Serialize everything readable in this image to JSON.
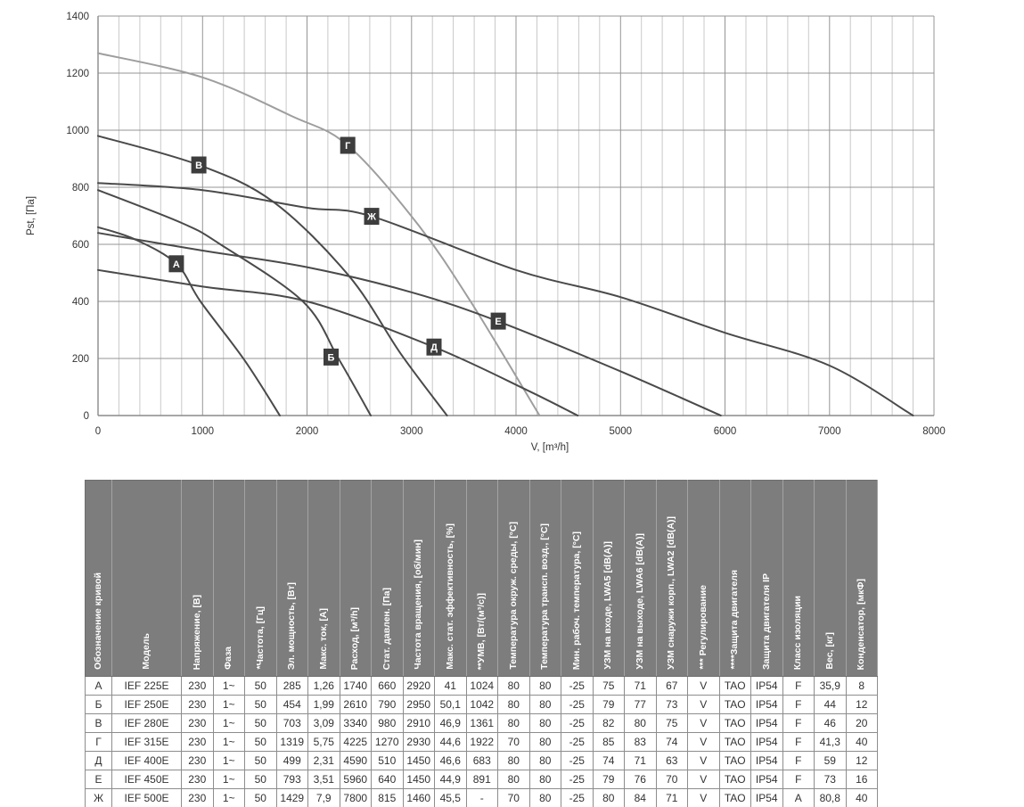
{
  "chart": {
    "colors": {
      "curve_dark": "#4a4a4a",
      "curve_light": "#9e9e9e",
      "grid_minor": "#c9c9c9",
      "grid_major": "#949494",
      "axis": "#8a8a8a",
      "tick_text": "#333333",
      "label_box": "#3d3d3d",
      "label_text": "#ffffff"
    }
  },
  "chart_data": {
    "type": "line",
    "title": "",
    "xlabel": "V, [m³/h]",
    "ylabel": "Pst, [Па]",
    "xlim": [
      0,
      8000
    ],
    "ylim": [
      0,
      1400
    ],
    "x_ticks": [
      0,
      1000,
      2000,
      3000,
      4000,
      5000,
      6000,
      7000,
      8000
    ],
    "x_minor_step": 200,
    "y_ticks": [
      0,
      200,
      400,
      600,
      800,
      1000,
      1200,
      1400
    ],
    "grid": true,
    "legend": "labels-on-curves",
    "series": [
      {
        "name": "А",
        "model": "IEF 225E",
        "shade": "dark",
        "label_at": [
          750,
          532
        ],
        "points": [
          [
            0,
            660
          ],
          [
            350,
            618
          ],
          [
            750,
            532
          ],
          [
            980,
            400
          ],
          [
            1400,
            195
          ],
          [
            1740,
            0
          ]
        ]
      },
      {
        "name": "Б",
        "model": "IEF 250E",
        "shade": "dark",
        "label_at": [
          2230,
          205
        ],
        "points": [
          [
            0,
            790
          ],
          [
            800,
            675
          ],
          [
            1170,
            600
          ],
          [
            1960,
            400
          ],
          [
            2300,
            200
          ],
          [
            2610,
            0
          ]
        ]
      },
      {
        "name": "В",
        "model": "IEF 280E",
        "shade": "dark",
        "label_at": [
          965,
          878
        ],
        "points": [
          [
            0,
            980
          ],
          [
            965,
            878
          ],
          [
            1680,
            748
          ],
          [
            2400,
            490
          ],
          [
            2900,
            215
          ],
          [
            3340,
            0
          ]
        ]
      },
      {
        "name": "Г",
        "model": "IEF 315E",
        "shade": "light",
        "label_at": [
          2390,
          947
        ],
        "points": [
          [
            0,
            1270
          ],
          [
            1000,
            1185
          ],
          [
            1850,
            1050
          ],
          [
            2390,
            947
          ],
          [
            3050,
            675
          ],
          [
            3565,
            400
          ],
          [
            4225,
            0
          ]
        ]
      },
      {
        "name": "Д",
        "model": "IEF 400E",
        "shade": "dark",
        "label_at": [
          3215,
          240
        ],
        "points": [
          [
            0,
            510
          ],
          [
            1000,
            452
          ],
          [
            2000,
            400
          ],
          [
            3215,
            240
          ],
          [
            4100,
            90
          ],
          [
            4590,
            0
          ]
        ]
      },
      {
        "name": "Е",
        "model": "IEF 450E",
        "shade": "dark",
        "label_at": [
          3830,
          331
        ],
        "points": [
          [
            0,
            640
          ],
          [
            1000,
            578
          ],
          [
            2000,
            520
          ],
          [
            3000,
            432
          ],
          [
            3830,
            330
          ],
          [
            5000,
            155
          ],
          [
            5960,
            0
          ]
        ]
      },
      {
        "name": "Ж",
        "model": "IEF 500E",
        "shade": "dark",
        "label_at": [
          2618,
          698
        ],
        "points": [
          [
            0,
            815
          ],
          [
            1000,
            790
          ],
          [
            2000,
            728
          ],
          [
            2618,
            698
          ],
          [
            4000,
            510
          ],
          [
            5000,
            415
          ],
          [
            6000,
            290
          ],
          [
            7000,
            175
          ],
          [
            7800,
            0
          ]
        ]
      }
    ]
  },
  "table": {
    "header_bg": "#7d7d7d",
    "columns": [
      "Обозначение кривой",
      "Модель",
      "Напряжение, [В]",
      "Фаза",
      "*Частота, [Гц]",
      "Эл. мощность, [Вт]",
      "Макс. ток, [А]",
      "Расход, [м³/h]",
      "Стат. давлен. [Па]",
      "Частота вращения, [об/мин]",
      "Макс. стат. эффективность, [%]",
      "**УМВ, [Вт/(м³/с)]",
      "Температура окруж. среды, [°С]",
      "Температура трансп. возд., [°С]",
      "Мин. рабоч. температура, [°С]",
      "УЗМ на входе, LWA5 [dB(A)]",
      "УЗМ на выходе, LWA6 [dB(A)]",
      "УЗМ снаружи корп., LWA2 [dB(A)]",
      "*** Регулирование",
      "****Защита двигателя",
      "Защита двигателя IP",
      "Класс изоляции",
      "Вес, [кг]",
      "Конденсатор, [мкФ]"
    ],
    "rows": [
      [
        "А",
        "IEF 225E",
        "230",
        "1~",
        "50",
        "285",
        "1,26",
        "1740",
        "660",
        "2920",
        "41",
        "1024",
        "80",
        "80",
        "-25",
        "75",
        "71",
        "67",
        "V",
        "TAO",
        "IP54",
        "F",
        "35,9",
        "8"
      ],
      [
        "Б",
        "IEF 250E",
        "230",
        "1~",
        "50",
        "454",
        "1,99",
        "2610",
        "790",
        "2950",
        "50,1",
        "1042",
        "80",
        "80",
        "-25",
        "79",
        "77",
        "73",
        "V",
        "TAO",
        "IP54",
        "F",
        "44",
        "12"
      ],
      [
        "В",
        "IEF 280E",
        "230",
        "1~",
        "50",
        "703",
        "3,09",
        "3340",
        "980",
        "2910",
        "46,9",
        "1361",
        "80",
        "80",
        "-25",
        "82",
        "80",
        "75",
        "V",
        "TAO",
        "IP54",
        "F",
        "46",
        "20"
      ],
      [
        "Г",
        "IEF 315E",
        "230",
        "1~",
        "50",
        "1319",
        "5,75",
        "4225",
        "1270",
        "2930",
        "44,6",
        "1922",
        "70",
        "80",
        "-25",
        "85",
        "83",
        "74",
        "V",
        "TAO",
        "IP54",
        "F",
        "41,3",
        "40"
      ],
      [
        "Д",
        "IEF 400E",
        "230",
        "1~",
        "50",
        "499",
        "2,31",
        "4590",
        "510",
        "1450",
        "46,6",
        "683",
        "80",
        "80",
        "-25",
        "74",
        "71",
        "63",
        "V",
        "TAO",
        "IP54",
        "F",
        "59",
        "12"
      ],
      [
        "Е",
        "IEF 450E",
        "230",
        "1~",
        "50",
        "793",
        "3,51",
        "5960",
        "640",
        "1450",
        "44,9",
        "891",
        "80",
        "80",
        "-25",
        "79",
        "76",
        "70",
        "V",
        "TAO",
        "IP54",
        "F",
        "73",
        "16"
      ],
      [
        "Ж",
        "IEF 500E",
        "230",
        "1~",
        "50",
        "1429",
        "7,9",
        "7800",
        "815",
        "1460",
        "45,5",
        "-",
        "70",
        "80",
        "-25",
        "80",
        "84",
        "71",
        "V",
        "TAO",
        "IP54",
        "A",
        "80,8",
        "40"
      ]
    ]
  }
}
